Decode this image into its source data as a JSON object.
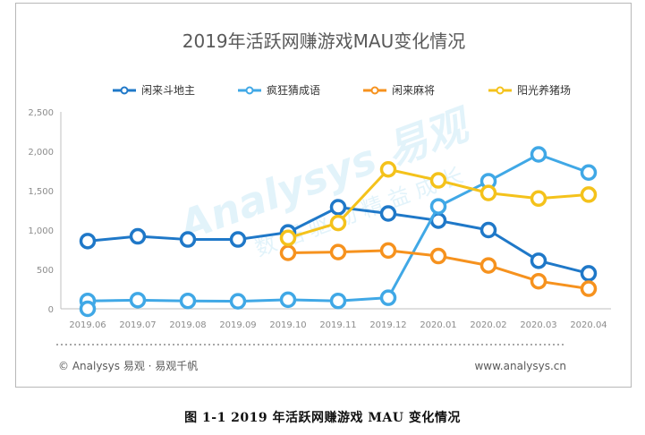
{
  "chart_data": {
    "type": "line",
    "title": "2019年活跃网赚游戏MAU变化情况",
    "xlabel": "",
    "ylabel": "",
    "categories": [
      "2019.06",
      "2019.07",
      "2019.08",
      "2019.09",
      "2019.10",
      "2019.11",
      "2019.12",
      "2020.01",
      "2020.02",
      "2020.03",
      "2020.04"
    ],
    "yticks": [
      "0",
      "500",
      "1,000",
      "1,500",
      "2,000",
      "2,500"
    ],
    "ylim": [
      0,
      2500
    ],
    "grid": false,
    "legend_position": "top",
    "series": [
      {
        "name": "闲来斗地主",
        "color": "#1f78c8",
        "values": [
          860,
          920,
          880,
          880,
          970,
          1290,
          1210,
          1120,
          1000,
          610,
          450
        ]
      },
      {
        "name": "疯狂猜成语",
        "color": "#40a8e6",
        "values": [
          100,
          110,
          100,
          95,
          115,
          100,
          140,
          1300,
          1620,
          1960,
          1730
        ]
      },
      {
        "name": "闲来麻将",
        "color": "#f6921e",
        "values": [
          null,
          null,
          null,
          null,
          710,
          720,
          740,
          670,
          550,
          350,
          255
        ]
      },
      {
        "name": "阳光养猪场",
        "color": "#f4c21b",
        "values": [
          null,
          null,
          null,
          null,
          900,
          1090,
          1770,
          1630,
          1470,
          1400,
          1450
        ]
      }
    ],
    "extra_points": [
      {
        "series": "疯狂猜成语",
        "category": "2019.06",
        "value": 0
      }
    ]
  },
  "footer": {
    "source": "© Analysys 易观 · 易观千帆",
    "website": "www.analysys.cn"
  },
  "watermark": {
    "brand": "Analysys 易观",
    "tagline": "数 据 驱 动 精 益 成 长"
  },
  "caption": "图 1-1 2019 年活跃网赚游戏 MAU 变化情况"
}
